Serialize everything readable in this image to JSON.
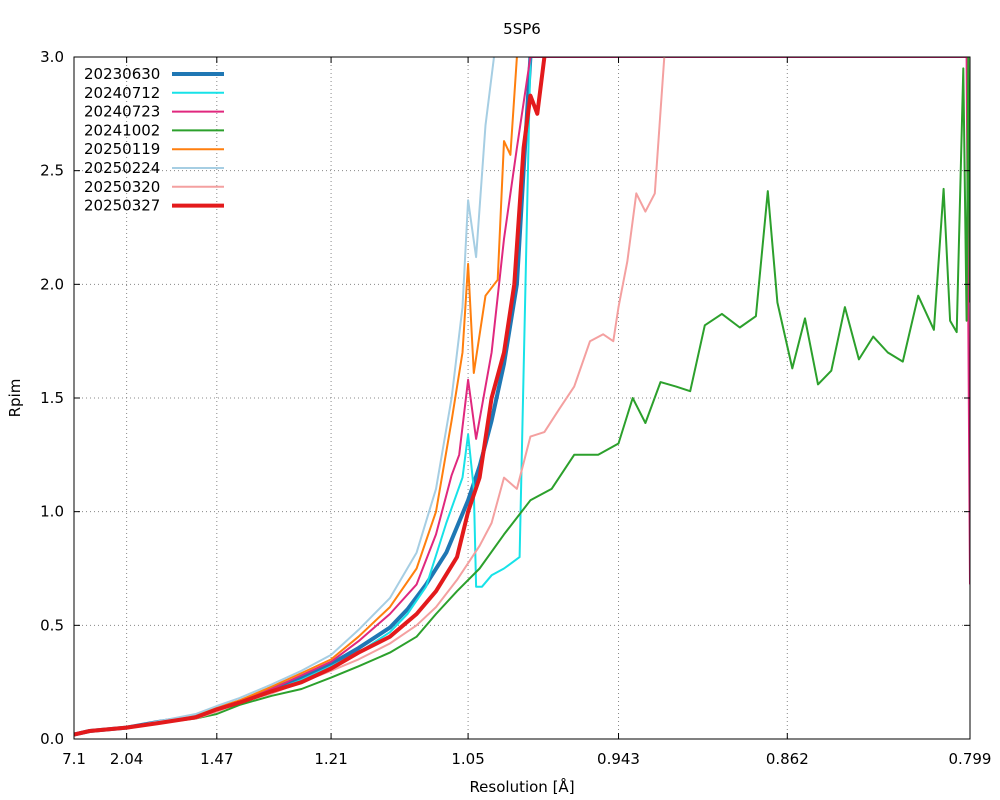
{
  "chart_data": {
    "type": "line",
    "title": "5SP6",
    "xlabel": "Resolution [Å]",
    "ylabel": "Rpim",
    "x_scale": "reciprocal-cubed",
    "xlim": [
      7.1,
      0.799
    ],
    "ylim": [
      0,
      3.0
    ],
    "grid": true,
    "legend_position": "top-left",
    "x_ticks": [
      "7.1",
      "2.04",
      "1.47",
      "1.21",
      "1.05",
      "0.943",
      "0.862",
      "0.799"
    ],
    "y_ticks": [
      "0.0",
      "0.5",
      "1.0",
      "1.5",
      "2.0",
      "2.5",
      "3.0"
    ],
    "series": [
      {
        "name": "20230630",
        "color": "#1f77b4",
        "width": 4,
        "points": [
          [
            7.1,
            0.02
          ],
          [
            3.0,
            0.035
          ],
          [
            2.04,
            0.05
          ],
          [
            1.75,
            0.075
          ],
          [
            1.55,
            0.1
          ],
          [
            1.47,
            0.13
          ],
          [
            1.4,
            0.16
          ],
          [
            1.32,
            0.22
          ],
          [
            1.26,
            0.27
          ],
          [
            1.21,
            0.33
          ],
          [
            1.17,
            0.4
          ],
          [
            1.13,
            0.49
          ],
          [
            1.11,
            0.57
          ],
          [
            1.09,
            0.68
          ],
          [
            1.07,
            0.82
          ],
          [
            1.05,
            1.05
          ],
          [
            1.04,
            1.2
          ],
          [
            1.03,
            1.4
          ],
          [
            1.02,
            1.65
          ],
          [
            1.01,
            2.0
          ],
          [
            1.005,
            2.5
          ],
          [
            1.0,
            3.0
          ]
        ]
      },
      {
        "name": "20240712",
        "color": "#17e2e8",
        "width": 2,
        "points": [
          [
            7.1,
            0.02
          ],
          [
            3.0,
            0.035
          ],
          [
            2.04,
            0.05
          ],
          [
            1.75,
            0.075
          ],
          [
            1.55,
            0.1
          ],
          [
            1.47,
            0.13
          ],
          [
            1.4,
            0.16
          ],
          [
            1.32,
            0.21
          ],
          [
            1.26,
            0.26
          ],
          [
            1.21,
            0.32
          ],
          [
            1.17,
            0.38
          ],
          [
            1.13,
            0.47
          ],
          [
            1.11,
            0.55
          ],
          [
            1.09,
            0.67
          ],
          [
            1.07,
            0.95
          ],
          [
            1.055,
            1.15
          ],
          [
            1.05,
            1.34
          ],
          [
            1.045,
            1.1
          ],
          [
            1.043,
            0.67
          ],
          [
            1.038,
            0.67
          ],
          [
            1.03,
            0.72
          ],
          [
            1.02,
            0.75
          ],
          [
            1.008,
            0.8
          ],
          [
            1.0,
            3.0
          ]
        ]
      },
      {
        "name": "20240723",
        "color": "#e0287e",
        "width": 2,
        "points": [
          [
            7.1,
            0.02
          ],
          [
            3.0,
            0.035
          ],
          [
            2.04,
            0.05
          ],
          [
            1.75,
            0.075
          ],
          [
            1.55,
            0.1
          ],
          [
            1.47,
            0.13
          ],
          [
            1.4,
            0.17
          ],
          [
            1.32,
            0.22
          ],
          [
            1.26,
            0.28
          ],
          [
            1.21,
            0.34
          ],
          [
            1.17,
            0.43
          ],
          [
            1.13,
            0.55
          ],
          [
            1.1,
            0.68
          ],
          [
            1.08,
            0.9
          ],
          [
            1.065,
            1.16
          ],
          [
            1.058,
            1.25
          ],
          [
            1.05,
            1.58
          ],
          [
            1.043,
            1.32
          ],
          [
            1.03,
            1.7
          ],
          [
            1.02,
            2.2
          ],
          [
            1.01,
            2.6
          ],
          [
            1.0,
            3.0
          ],
          [
            0.8,
            3.0
          ],
          [
            0.799,
            0.68
          ]
        ]
      },
      {
        "name": "20241002",
        "color": "#2ca02c",
        "width": 2,
        "points": [
          [
            7.1,
            0.02
          ],
          [
            3.0,
            0.035
          ],
          [
            2.04,
            0.05
          ],
          [
            1.75,
            0.07
          ],
          [
            1.55,
            0.09
          ],
          [
            1.47,
            0.11
          ],
          [
            1.4,
            0.15
          ],
          [
            1.32,
            0.19
          ],
          [
            1.26,
            0.22
          ],
          [
            1.21,
            0.27
          ],
          [
            1.17,
            0.32
          ],
          [
            1.13,
            0.38
          ],
          [
            1.1,
            0.45
          ],
          [
            1.08,
            0.55
          ],
          [
            1.06,
            0.65
          ],
          [
            1.04,
            0.75
          ],
          [
            1.02,
            0.9
          ],
          [
            1.0,
            1.05
          ],
          [
            0.985,
            1.1
          ],
          [
            0.97,
            1.25
          ],
          [
            0.955,
            1.25
          ],
          [
            0.943,
            1.3
          ],
          [
            0.935,
            1.5
          ],
          [
            0.928,
            1.39
          ],
          [
            0.92,
            1.57
          ],
          [
            0.912,
            1.55
          ],
          [
            0.905,
            1.53
          ],
          [
            0.898,
            1.82
          ],
          [
            0.89,
            1.87
          ],
          [
            0.882,
            1.81
          ],
          [
            0.875,
            1.86
          ],
          [
            0.87,
            2.41
          ],
          [
            0.866,
            1.92
          ],
          [
            0.86,
            1.63
          ],
          [
            0.855,
            1.85
          ],
          [
            0.85,
            1.56
          ],
          [
            0.845,
            1.62
          ],
          [
            0.84,
            1.9
          ],
          [
            0.835,
            1.67
          ],
          [
            0.83,
            1.77
          ],
          [
            0.825,
            1.7
          ],
          [
            0.82,
            1.66
          ],
          [
            0.815,
            1.95
          ],
          [
            0.81,
            1.8
          ],
          [
            0.807,
            2.42
          ],
          [
            0.805,
            1.84
          ],
          [
            0.803,
            1.79
          ],
          [
            0.801,
            2.95
          ],
          [
            0.8,
            1.84
          ],
          [
            0.7995,
            3.0
          ],
          [
            0.799,
            1.92
          ]
        ]
      },
      {
        "name": "20250119",
        "color": "#ff7f0e",
        "width": 2,
        "points": [
          [
            7.1,
            0.02
          ],
          [
            3.0,
            0.035
          ],
          [
            2.04,
            0.05
          ],
          [
            1.75,
            0.075
          ],
          [
            1.55,
            0.1
          ],
          [
            1.47,
            0.14
          ],
          [
            1.4,
            0.17
          ],
          [
            1.32,
            0.23
          ],
          [
            1.26,
            0.29
          ],
          [
            1.21,
            0.35
          ],
          [
            1.17,
            0.45
          ],
          [
            1.13,
            0.58
          ],
          [
            1.1,
            0.75
          ],
          [
            1.08,
            1.0
          ],
          [
            1.065,
            1.4
          ],
          [
            1.055,
            1.7
          ],
          [
            1.05,
            2.09
          ],
          [
            1.045,
            1.61
          ],
          [
            1.035,
            1.95
          ],
          [
            1.025,
            2.02
          ],
          [
            1.02,
            2.63
          ],
          [
            1.015,
            2.57
          ],
          [
            1.01,
            3.0
          ]
        ]
      },
      {
        "name": "20250224",
        "color": "#a6cee3",
        "width": 2,
        "points": [
          [
            7.1,
            0.02
          ],
          [
            3.0,
            0.035
          ],
          [
            2.04,
            0.05
          ],
          [
            1.75,
            0.078
          ],
          [
            1.55,
            0.11
          ],
          [
            1.47,
            0.145
          ],
          [
            1.4,
            0.18
          ],
          [
            1.32,
            0.24
          ],
          [
            1.26,
            0.3
          ],
          [
            1.21,
            0.37
          ],
          [
            1.17,
            0.48
          ],
          [
            1.13,
            0.62
          ],
          [
            1.1,
            0.82
          ],
          [
            1.08,
            1.1
          ],
          [
            1.065,
            1.5
          ],
          [
            1.055,
            1.9
          ],
          [
            1.05,
            2.37
          ],
          [
            1.043,
            2.12
          ],
          [
            1.035,
            2.7
          ],
          [
            1.028,
            3.0
          ]
        ]
      },
      {
        "name": "20250320",
        "color": "#f4a0a0",
        "width": 2,
        "points": [
          [
            7.1,
            0.02
          ],
          [
            3.0,
            0.035
          ],
          [
            2.04,
            0.05
          ],
          [
            1.75,
            0.072
          ],
          [
            1.55,
            0.09
          ],
          [
            1.47,
            0.12
          ],
          [
            1.4,
            0.16
          ],
          [
            1.32,
            0.2
          ],
          [
            1.26,
            0.25
          ],
          [
            1.21,
            0.3
          ],
          [
            1.17,
            0.35
          ],
          [
            1.13,
            0.42
          ],
          [
            1.1,
            0.5
          ],
          [
            1.08,
            0.58
          ],
          [
            1.06,
            0.7
          ],
          [
            1.04,
            0.85
          ],
          [
            1.03,
            0.95
          ],
          [
            1.02,
            1.15
          ],
          [
            1.01,
            1.1
          ],
          [
            1.0,
            1.33
          ],
          [
            0.99,
            1.35
          ],
          [
            0.98,
            1.45
          ],
          [
            0.97,
            1.55
          ],
          [
            0.96,
            1.75
          ],
          [
            0.952,
            1.78
          ],
          [
            0.946,
            1.75
          ],
          [
            0.943,
            1.9
          ],
          [
            0.938,
            2.1
          ],
          [
            0.933,
            2.4
          ],
          [
            0.928,
            2.32
          ],
          [
            0.923,
            2.4
          ],
          [
            0.918,
            3.0
          ]
        ]
      },
      {
        "name": "20250327",
        "color": "#e31a1c",
        "width": 4,
        "points": [
          [
            7.1,
            0.02
          ],
          [
            3.0,
            0.035
          ],
          [
            2.04,
            0.05
          ],
          [
            1.75,
            0.07
          ],
          [
            1.55,
            0.095
          ],
          [
            1.47,
            0.13
          ],
          [
            1.4,
            0.16
          ],
          [
            1.32,
            0.21
          ],
          [
            1.26,
            0.25
          ],
          [
            1.21,
            0.31
          ],
          [
            1.17,
            0.38
          ],
          [
            1.13,
            0.45
          ],
          [
            1.1,
            0.55
          ],
          [
            1.08,
            0.65
          ],
          [
            1.06,
            0.8
          ],
          [
            1.05,
            1.0
          ],
          [
            1.04,
            1.15
          ],
          [
            1.03,
            1.5
          ],
          [
            1.02,
            1.7
          ],
          [
            1.012,
            2.0
          ],
          [
            1.005,
            2.6
          ],
          [
            1.0,
            2.83
          ],
          [
            0.995,
            2.75
          ],
          [
            0.99,
            3.0
          ]
        ]
      }
    ]
  }
}
